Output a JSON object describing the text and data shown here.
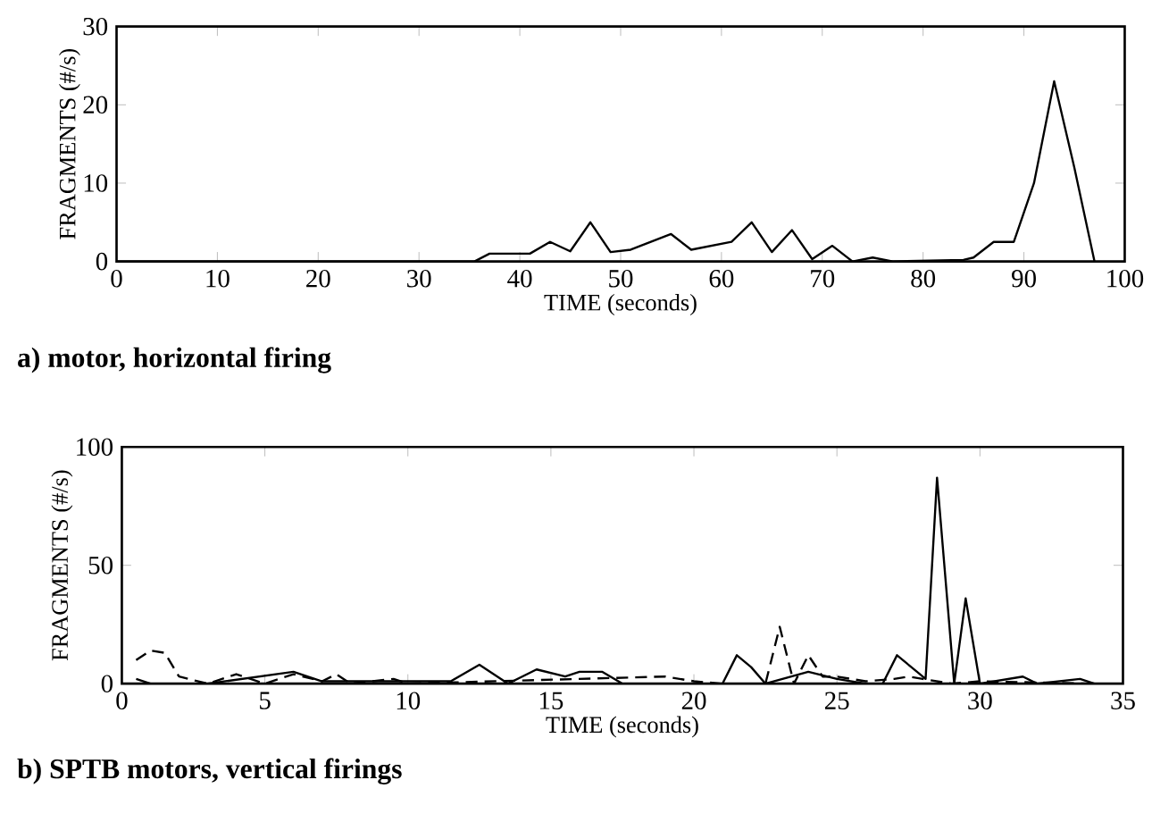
{
  "chart_data": [
    {
      "type": "line",
      "title": "a) motor, horizontal firing",
      "xlabel": "TIME (seconds)",
      "ylabel": "FRAGMENTS (#/s)",
      "xlim": [
        0,
        100
      ],
      "ylim": [
        0,
        30
      ],
      "xticks": [
        0,
        10,
        20,
        30,
        40,
        50,
        60,
        70,
        80,
        90,
        100
      ],
      "yticks": [
        0,
        10,
        20,
        30
      ],
      "grid": false,
      "marker": "none",
      "series": [
        {
          "color": "#000000",
          "line_style": "solid",
          "x": [
            0,
            35.5,
            37,
            41,
            43,
            45,
            47,
            49,
            51,
            55,
            57,
            61,
            63,
            65,
            67,
            69,
            71,
            73,
            75,
            77,
            84,
            85,
            87,
            89,
            91,
            93,
            95,
            97
          ],
          "values": [
            0,
            0,
            1,
            1,
            2.5,
            1.3,
            5,
            1.2,
            1.5,
            3.5,
            1.5,
            2.5,
            5,
            1.2,
            4,
            0.3,
            2,
            0,
            0.5,
            0,
            0.2,
            0.5,
            2.5,
            2.5,
            10,
            23,
            12,
            0
          ]
        }
      ]
    },
    {
      "type": "line",
      "title": "b) SPTB motors, vertical firings",
      "xlabel": "TIME (seconds)",
      "ylabel": "FRAGMENTS (#/s)",
      "xlim": [
        0,
        35
      ],
      "ylim": [
        0,
        100
      ],
      "xticks": [
        0,
        5,
        10,
        15,
        20,
        25,
        30,
        35
      ],
      "yticks": [
        0,
        50,
        100
      ],
      "grid": false,
      "marker": "none",
      "series": [
        {
          "color": "#000000",
          "line_style": "solid",
          "x": [
            0.5,
            1,
            3,
            6,
            7,
            9,
            11.5,
            12.5,
            13.5,
            14.5,
            15.5,
            16,
            16.8,
            17.5,
            20,
            21,
            21.5,
            22,
            22.5,
            24,
            25,
            26,
            26.6,
            27.1,
            27.8,
            28.1,
            28.5,
            29.1,
            29.5,
            30,
            31.5,
            32,
            33.5,
            34
          ],
          "values": [
            2,
            0,
            0,
            5,
            1,
            1,
            1,
            8,
            0,
            6,
            3,
            5,
            5,
            0,
            0,
            0,
            12,
            7,
            0,
            5,
            2,
            0,
            0,
            12,
            5,
            2,
            87,
            0,
            36,
            0,
            3,
            0,
            2,
            0
          ]
        },
        {
          "color": "#000000",
          "line_style": "dashed",
          "x": [
            0.5,
            1,
            1.5,
            2,
            3,
            4,
            5,
            6,
            7,
            7.5,
            8,
            9.5,
            10,
            19,
            20,
            21,
            22.5,
            23,
            23.5,
            24,
            24.5,
            25,
            26,
            27,
            27.5,
            28,
            29,
            30,
            34
          ],
          "values": [
            10,
            14,
            13,
            3,
            0,
            4,
            0,
            4,
            1,
            4,
            0,
            2,
            0,
            3,
            1,
            0,
            0,
            24,
            0,
            12,
            3,
            3,
            1,
            2,
            3,
            2,
            0,
            1,
            0
          ]
        }
      ]
    }
  ]
}
